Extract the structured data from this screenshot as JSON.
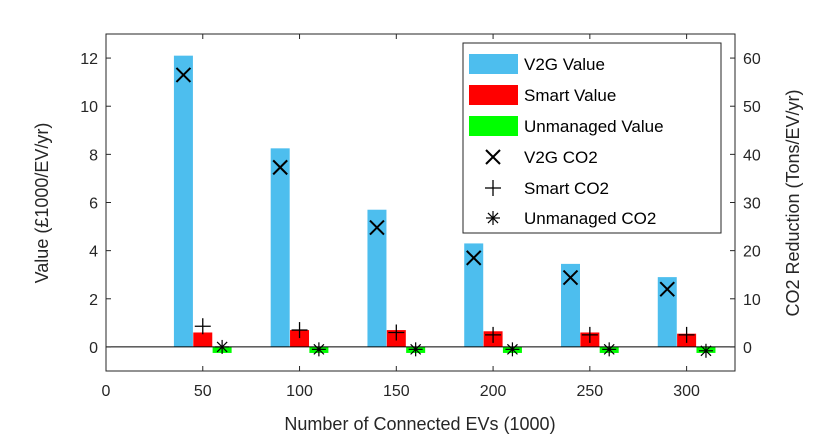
{
  "chart_data": {
    "type": "bar",
    "xlabel": "Number of Connected EVs (1000)",
    "ylabel_left": "Value (£1000/EV/yr)",
    "ylabel_right": "CO2 Reduction (Tons/EV/yr)",
    "xlim": [
      0,
      325
    ],
    "ylim_left": [
      -1,
      13
    ],
    "ylim_right": [
      -5,
      65
    ],
    "xticks": [
      "0",
      "50",
      "100",
      "150",
      "200",
      "250",
      "300"
    ],
    "yticks_left": [
      "0",
      "2",
      "4",
      "6",
      "8",
      "10",
      "12"
    ],
    "yticks_right": [
      "0",
      "10",
      "20",
      "30",
      "40",
      "50",
      "60"
    ],
    "categories": [
      50,
      100,
      150,
      200,
      250,
      300
    ],
    "bar_series": [
      {
        "name": "V2G Value",
        "color": "#4dbeee",
        "offset": -10,
        "values": [
          12.1,
          8.25,
          5.7,
          4.3,
          3.45,
          2.9
        ]
      },
      {
        "name": "Smart Value",
        "color": "#ff0000",
        "offset": 0,
        "values": [
          0.6,
          0.7,
          0.7,
          0.65,
          0.6,
          0.55
        ]
      },
      {
        "name": "Unmanaged Value",
        "color": "#00ff00",
        "offset": 10,
        "values": [
          -0.25,
          -0.25,
          -0.25,
          -0.25,
          -0.25,
          -0.25
        ]
      }
    ],
    "marker_series": [
      {
        "name": "V2G CO2",
        "marker": "x",
        "offset": -10,
        "values": [
          56.5,
          37.3,
          24.8,
          18.5,
          14.4,
          12.0
        ]
      },
      {
        "name": "Smart CO2",
        "marker": "+",
        "offset": 0,
        "values": [
          4.3,
          3.5,
          3.0,
          2.5,
          2.5,
          2.5
        ]
      },
      {
        "name": "Unmanaged CO2",
        "marker": "*",
        "offset": 10,
        "values": [
          0.0,
          -0.5,
          -0.5,
          -0.5,
          -0.5,
          -0.8
        ]
      }
    ],
    "legend_position": "top-right"
  }
}
